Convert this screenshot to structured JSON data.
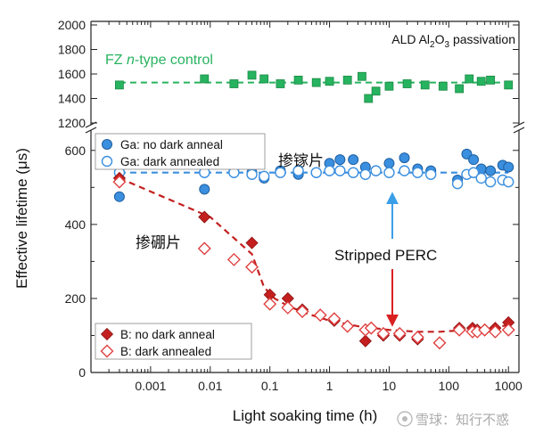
{
  "chart_data": {
    "type": "scatter",
    "x_scale": "log",
    "xlabel": "Light soaking time (h)",
    "ylabel": "Effective lifetime (μs)",
    "xlim": [
      0.0001,
      1500
    ],
    "x_ticks": [
      0.001,
      0.01,
      0.1,
      1,
      10,
      100,
      1000
    ],
    "x_tick_labels": [
      "0.001",
      "0.01",
      "0.1",
      "1",
      "10",
      "100",
      "1000"
    ],
    "grid": false,
    "top_panel": {
      "ylim": [
        1200,
        2000
      ],
      "y_ticks": [
        1200,
        1400,
        1600,
        1800,
        2000
      ],
      "y_tick_labels": [
        "1200",
        "1400",
        "1600",
        "1800",
        "2000"
      ],
      "title": "ALD Al₂O₃ passivation",
      "series": [
        {
          "name": "FZ n-type control",
          "color": "#27b35f",
          "marker": "square",
          "x": [
            0.0003,
            0.008,
            0.025,
            0.05,
            0.08,
            0.15,
            0.3,
            0.6,
            1,
            2,
            3.5,
            4.5,
            6,
            10,
            20,
            40,
            80,
            150,
            220,
            350,
            500,
            1000
          ],
          "y": [
            1510,
            1560,
            1520,
            1590,
            1560,
            1520,
            1550,
            1530,
            1540,
            1550,
            1580,
            1400,
            1460,
            1500,
            1520,
            1510,
            1500,
            1480,
            1560,
            1540,
            1550,
            1510
          ],
          "trend_x": [
            0.0003,
            1000
          ],
          "trend_y": [
            1530,
            1530
          ]
        }
      ]
    },
    "bottom_panel": {
      "ylim": [
        0,
        650
      ],
      "y_ticks": [
        0,
        200,
        400,
        600
      ],
      "y_tick_labels": [
        "0",
        "200",
        "400",
        "600"
      ],
      "series": [
        {
          "name": "Ga: no dark anneal",
          "color": "#3b8fdf",
          "marker": "circle-filled",
          "x": [
            0.0003,
            0.008,
            0.025,
            0.05,
            0.08,
            0.15,
            0.3,
            0.6,
            1,
            1.5,
            2.5,
            4,
            6,
            10,
            18,
            30,
            50,
            140,
            200,
            260,
            350,
            500,
            800,
            1000
          ],
          "y": [
            475,
            495,
            550,
            540,
            525,
            545,
            535,
            540,
            565,
            575,
            575,
            555,
            545,
            565,
            580,
            550,
            545,
            520,
            590,
            575,
            550,
            545,
            560,
            555
          ]
        },
        {
          "name": "Ga: dark annealed",
          "color": "#3b8fdf",
          "marker": "circle-open",
          "x": [
            0.0003,
            0.008,
            0.025,
            0.05,
            0.08,
            0.15,
            0.3,
            0.6,
            1,
            1.5,
            2.5,
            4,
            6,
            10,
            18,
            30,
            50,
            140,
            200,
            260,
            350,
            500,
            800,
            1000
          ],
          "y": [
            540,
            540,
            540,
            535,
            530,
            540,
            545,
            540,
            545,
            545,
            540,
            535,
            545,
            540,
            545,
            540,
            535,
            510,
            535,
            540,
            525,
            515,
            520,
            515
          ],
          "trend_x": [
            0.0003,
            1000
          ],
          "trend_y": [
            540,
            540
          ]
        },
        {
          "name": "B: no dark anneal",
          "color": "#c41f1f",
          "marker": "diamond-filled",
          "x": [
            0.0003,
            0.008,
            0.05,
            0.1,
            0.2,
            0.35,
            0.7,
            1.2,
            2,
            4,
            5,
            8,
            15,
            30,
            70,
            150,
            250,
            300,
            400,
            600,
            1000
          ],
          "y": [
            525,
            420,
            350,
            210,
            200,
            170,
            155,
            140,
            125,
            85,
            120,
            100,
            100,
            90,
            80,
            120,
            120,
            115,
            115,
            120,
            135
          ],
          "trend_x": [
            0.0003,
            0.01,
            0.05,
            0.08,
            0.12,
            0.2,
            0.4,
            1,
            3,
            10,
            30,
            70,
            200,
            500,
            1000
          ],
          "trend_y": [
            525,
            420,
            320,
            230,
            200,
            180,
            160,
            140,
            125,
            115,
            110,
            110,
            115,
            120,
            128
          ]
        },
        {
          "name": "B: dark annealed",
          "color": "#e04040",
          "marker": "diamond-open",
          "x": [
            0.0003,
            0.008,
            0.025,
            0.05,
            0.1,
            0.2,
            0.35,
            0.7,
            1.2,
            2,
            4,
            5,
            8,
            15,
            30,
            70,
            150,
            250,
            300,
            400,
            600,
            1000
          ],
          "y": [
            515,
            335,
            305,
            285,
            185,
            175,
            165,
            155,
            145,
            125,
            115,
            120,
            105,
            105,
            95,
            80,
            115,
            110,
            110,
            115,
            110,
            115
          ]
        }
      ]
    },
    "annotations": {
      "fz_label": "FZ n-type control",
      "ga_cn": "掺镓片",
      "b_cn": "掺硼片",
      "stripped": "Stripped PERC"
    },
    "legend_top": {
      "items": [
        "Ga: no dark anneal",
        "Ga: dark annealed"
      ]
    },
    "legend_bottom": {
      "items": [
        "B: no dark anneal",
        "B: dark annealed"
      ]
    },
    "watermark": "雪球：知行不惑"
  }
}
